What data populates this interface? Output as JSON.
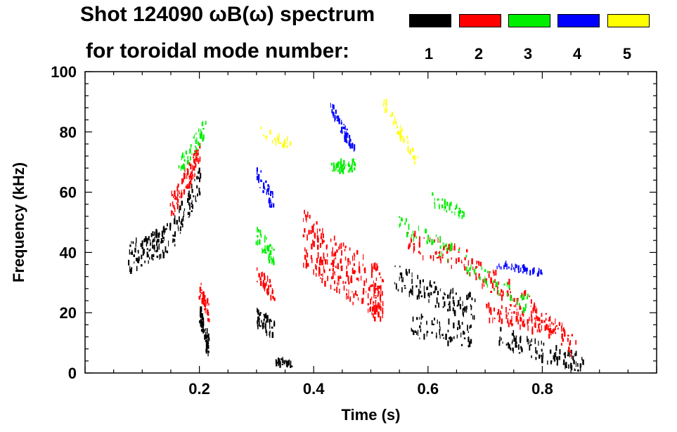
{
  "chart_data": {
    "type": "scatter",
    "title_line1": "Shot 124090 ωB(ω) spectrum",
    "title_line2": "for toroidal mode number:",
    "xlabel": "Time (s)",
    "ylabel": "Frequency (kHz)",
    "xlim": [
      0.0,
      1.0
    ],
    "ylim": [
      0,
      100
    ],
    "x_ticks": [
      {
        "value": 0.2,
        "label": "0.2"
      },
      {
        "value": 0.4,
        "label": "0.4"
      },
      {
        "value": 0.6,
        "label": "0.6"
      },
      {
        "value": 0.8,
        "label": "0.8"
      }
    ],
    "y_ticks": [
      {
        "value": 0,
        "label": "0"
      },
      {
        "value": 20,
        "label": "20"
      },
      {
        "value": 40,
        "label": "40"
      },
      {
        "value": 60,
        "label": "60"
      },
      {
        "value": 80,
        "label": "80"
      },
      {
        "value": 100,
        "label": "100"
      }
    ],
    "legend": [
      {
        "n": "1",
        "color": "#000000"
      },
      {
        "n": "2",
        "color": "#ff0000"
      },
      {
        "n": "3",
        "color": "#00ee00"
      },
      {
        "n": "4",
        "color": "#0000ff"
      },
      {
        "n": "5",
        "color": "#ffff00"
      }
    ],
    "series": [
      {
        "name": "1",
        "color": "#000000",
        "segments": [
          {
            "x": [
              0.075,
              0.1,
              0.12,
              0.15,
              0.18,
              0.2
            ],
            "y": [
              38,
              40,
              42,
              45,
              56,
              64
            ],
            "spread": 5,
            "density": 22
          },
          {
            "x": [
              0.2,
              0.215
            ],
            "y": [
              20,
              8
            ],
            "spread": 3,
            "density": 8
          },
          {
            "x": [
              0.3,
              0.33
            ],
            "y": [
              18,
              14
            ],
            "spread": 3,
            "density": 6
          },
          {
            "x": [
              0.33,
              0.36
            ],
            "y": [
              4,
              3
            ],
            "spread": 1,
            "density": 4
          },
          {
            "x": [
              0.54,
              0.6,
              0.64,
              0.68
            ],
            "y": [
              32,
              27,
              24,
              22
            ],
            "spread": 4,
            "density": 14
          },
          {
            "x": [
              0.57,
              0.62,
              0.68
            ],
            "y": [
              16,
              14,
              12
            ],
            "spread": 4,
            "density": 8
          },
          {
            "x": [
              0.72,
              0.8,
              0.87
            ],
            "y": [
              12,
              7,
              3
            ],
            "spread": 3,
            "density": 12
          }
        ]
      },
      {
        "name": "2",
        "color": "#ff0000",
        "segments": [
          {
            "x": [
              0.15,
              0.18,
              0.2
            ],
            "y": [
              55,
              65,
              74
            ],
            "spread": 4,
            "density": 12
          },
          {
            "x": [
              0.2,
              0.215
            ],
            "y": [
              28,
              20
            ],
            "spread": 3,
            "density": 5
          },
          {
            "x": [
              0.3,
              0.33
            ],
            "y": [
              33,
              26
            ],
            "spread": 3,
            "density": 5
          },
          {
            "x": [
              0.38,
              0.42,
              0.46,
              0.5,
              0.52
            ],
            "y": [
              45,
              38,
              33,
              28,
              25
            ],
            "spread": 9,
            "density": 32
          },
          {
            "x": [
              0.56,
              0.62,
              0.68
            ],
            "y": [
              44,
              40,
              36
            ],
            "spread": 4,
            "density": 8
          },
          {
            "x": [
              0.68,
              0.74,
              0.8,
              0.86
            ],
            "y": [
              34,
              27,
              18,
              8
            ],
            "spread": 4,
            "density": 14
          },
          {
            "x": [
              0.7,
              0.76,
              0.82
            ],
            "y": [
              20,
              18,
              14
            ],
            "spread": 3,
            "density": 10
          }
        ]
      },
      {
        "name": "3",
        "color": "#00ee00",
        "segments": [
          {
            "x": [
              0.16,
              0.19,
              0.21
            ],
            "y": [
              66,
              76,
              82
            ],
            "spread": 3,
            "density": 6
          },
          {
            "x": [
              0.3,
              0.33
            ],
            "y": [
              46,
              38
            ],
            "spread": 3,
            "density": 5
          },
          {
            "x": [
              0.43,
              0.47
            ],
            "y": [
              68,
              69
            ],
            "spread": 2,
            "density": 6
          },
          {
            "x": [
              0.55,
              0.62,
              0.7,
              0.78
            ],
            "y": [
              50,
              42,
              32,
              22
            ],
            "spread": 3,
            "density": 10
          },
          {
            "x": [
              0.6,
              0.67
            ],
            "y": [
              58,
              52
            ],
            "spread": 2,
            "density": 4
          }
        ]
      },
      {
        "name": "4",
        "color": "#0000ff",
        "segments": [
          {
            "x": [
              0.3,
              0.33
            ],
            "y": [
              66,
              56
            ],
            "spread": 3,
            "density": 5
          },
          {
            "x": [
              0.43,
              0.47
            ],
            "y": [
              88,
              74
            ],
            "spread": 2,
            "density": 7
          },
          {
            "x": [
              0.72,
              0.8
            ],
            "y": [
              36,
              33
            ],
            "spread": 1,
            "density": 5
          }
        ]
      },
      {
        "name": "5",
        "color": "#ffff00",
        "segments": [
          {
            "x": [
              0.3,
              0.36
            ],
            "y": [
              80,
              76
            ],
            "spread": 2,
            "density": 3
          },
          {
            "x": [
              0.52,
              0.58
            ],
            "y": [
              90,
              70
            ],
            "spread": 2,
            "density": 5
          }
        ]
      }
    ]
  }
}
